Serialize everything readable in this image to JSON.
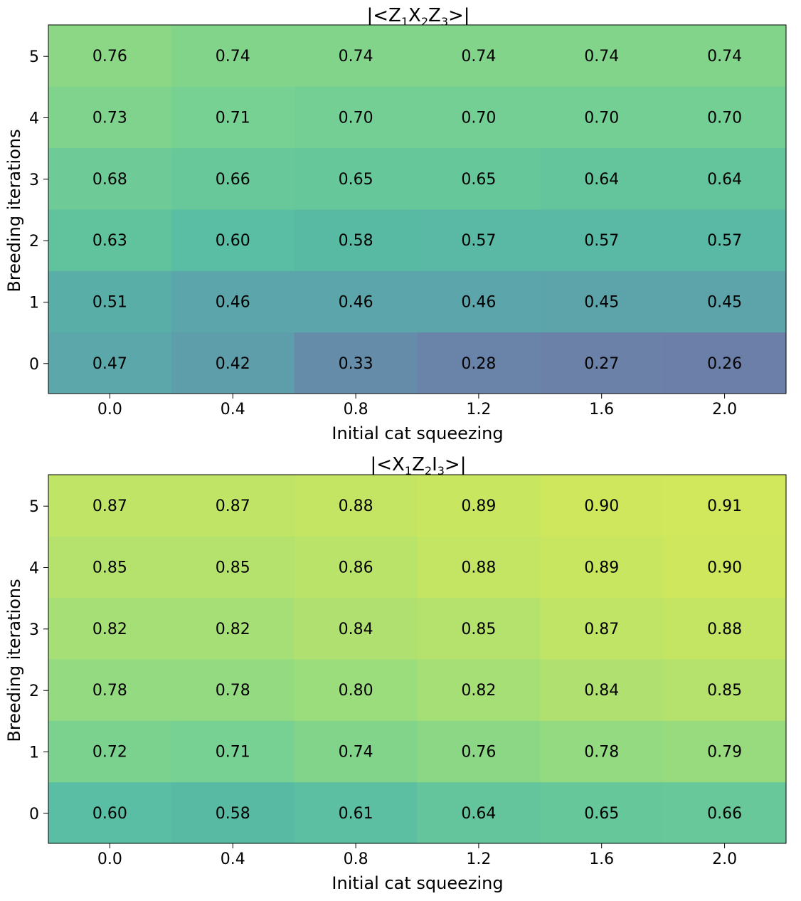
{
  "chart_data": [
    {
      "type": "heatmap",
      "title_parts": [
        "|<Z",
        "1",
        "X",
        "2",
        "Z",
        "3",
        ">|"
      ],
      "xlabel": "Initial cat squeezing",
      "ylabel": "Breeding iterations",
      "x_ticks": [
        "0.0",
        "0.4",
        "0.8",
        "1.2",
        "1.6",
        "2.0"
      ],
      "y_ticks": [
        "0",
        "1",
        "2",
        "3",
        "4",
        "5"
      ],
      "values": [
        [
          0.47,
          0.42,
          0.33,
          0.28,
          0.27,
          0.26
        ],
        [
          0.51,
          0.46,
          0.46,
          0.46,
          0.45,
          0.45
        ],
        [
          0.63,
          0.6,
          0.58,
          0.57,
          0.57,
          0.57
        ],
        [
          0.68,
          0.66,
          0.65,
          0.65,
          0.64,
          0.64
        ],
        [
          0.73,
          0.71,
          0.7,
          0.7,
          0.7,
          0.7
        ],
        [
          0.76,
          0.74,
          0.74,
          0.74,
          0.74,
          0.74
        ]
      ],
      "cell_labels": [
        [
          "0.47",
          "0.42",
          "0.33",
          "0.28",
          "0.27",
          "0.26"
        ],
        [
          "0.51",
          "0.46",
          "0.46",
          "0.46",
          "0.45",
          "0.45"
        ],
        [
          "0.63",
          "0.60",
          "0.58",
          "0.57",
          "0.57",
          "0.57"
        ],
        [
          "0.68",
          "0.66",
          "0.65",
          "0.65",
          "0.64",
          "0.64"
        ],
        [
          "0.73",
          "0.71",
          "0.70",
          "0.70",
          "0.70",
          "0.70"
        ],
        [
          "0.76",
          "0.74",
          "0.74",
          "0.74",
          "0.74",
          "0.74"
        ]
      ],
      "colormap": "viridis",
      "color_range": [
        0.0,
        1.0
      ]
    },
    {
      "type": "heatmap",
      "title_parts": [
        "|<X",
        "1",
        "Z",
        "2",
        "I",
        "3",
        ">|"
      ],
      "xlabel": "Initial cat squeezing",
      "ylabel": "Breeding iterations",
      "x_ticks": [
        "0.0",
        "0.4",
        "0.8",
        "1.2",
        "1.6",
        "2.0"
      ],
      "y_ticks": [
        "0",
        "1",
        "2",
        "3",
        "4",
        "5"
      ],
      "values": [
        [
          0.6,
          0.58,
          0.61,
          0.64,
          0.65,
          0.66
        ],
        [
          0.72,
          0.71,
          0.74,
          0.76,
          0.78,
          0.79
        ],
        [
          0.78,
          0.78,
          0.8,
          0.82,
          0.84,
          0.85
        ],
        [
          0.82,
          0.82,
          0.84,
          0.85,
          0.87,
          0.88
        ],
        [
          0.85,
          0.85,
          0.86,
          0.88,
          0.89,
          0.9
        ],
        [
          0.87,
          0.87,
          0.88,
          0.89,
          0.9,
          0.91
        ]
      ],
      "cell_labels": [
        [
          "0.60",
          "0.58",
          "0.61",
          "0.64",
          "0.65",
          "0.66"
        ],
        [
          "0.72",
          "0.71",
          "0.74",
          "0.76",
          "0.78",
          "0.79"
        ],
        [
          "0.78",
          "0.78",
          "0.80",
          "0.82",
          "0.84",
          "0.85"
        ],
        [
          "0.82",
          "0.82",
          "0.84",
          "0.85",
          "0.87",
          "0.88"
        ],
        [
          "0.85",
          "0.85",
          "0.86",
          "0.88",
          "0.89",
          "0.90"
        ],
        [
          "0.87",
          "0.87",
          "0.88",
          "0.89",
          "0.90",
          "0.91"
        ]
      ],
      "colormap": "viridis",
      "color_range": [
        0.0,
        1.0
      ]
    }
  ]
}
